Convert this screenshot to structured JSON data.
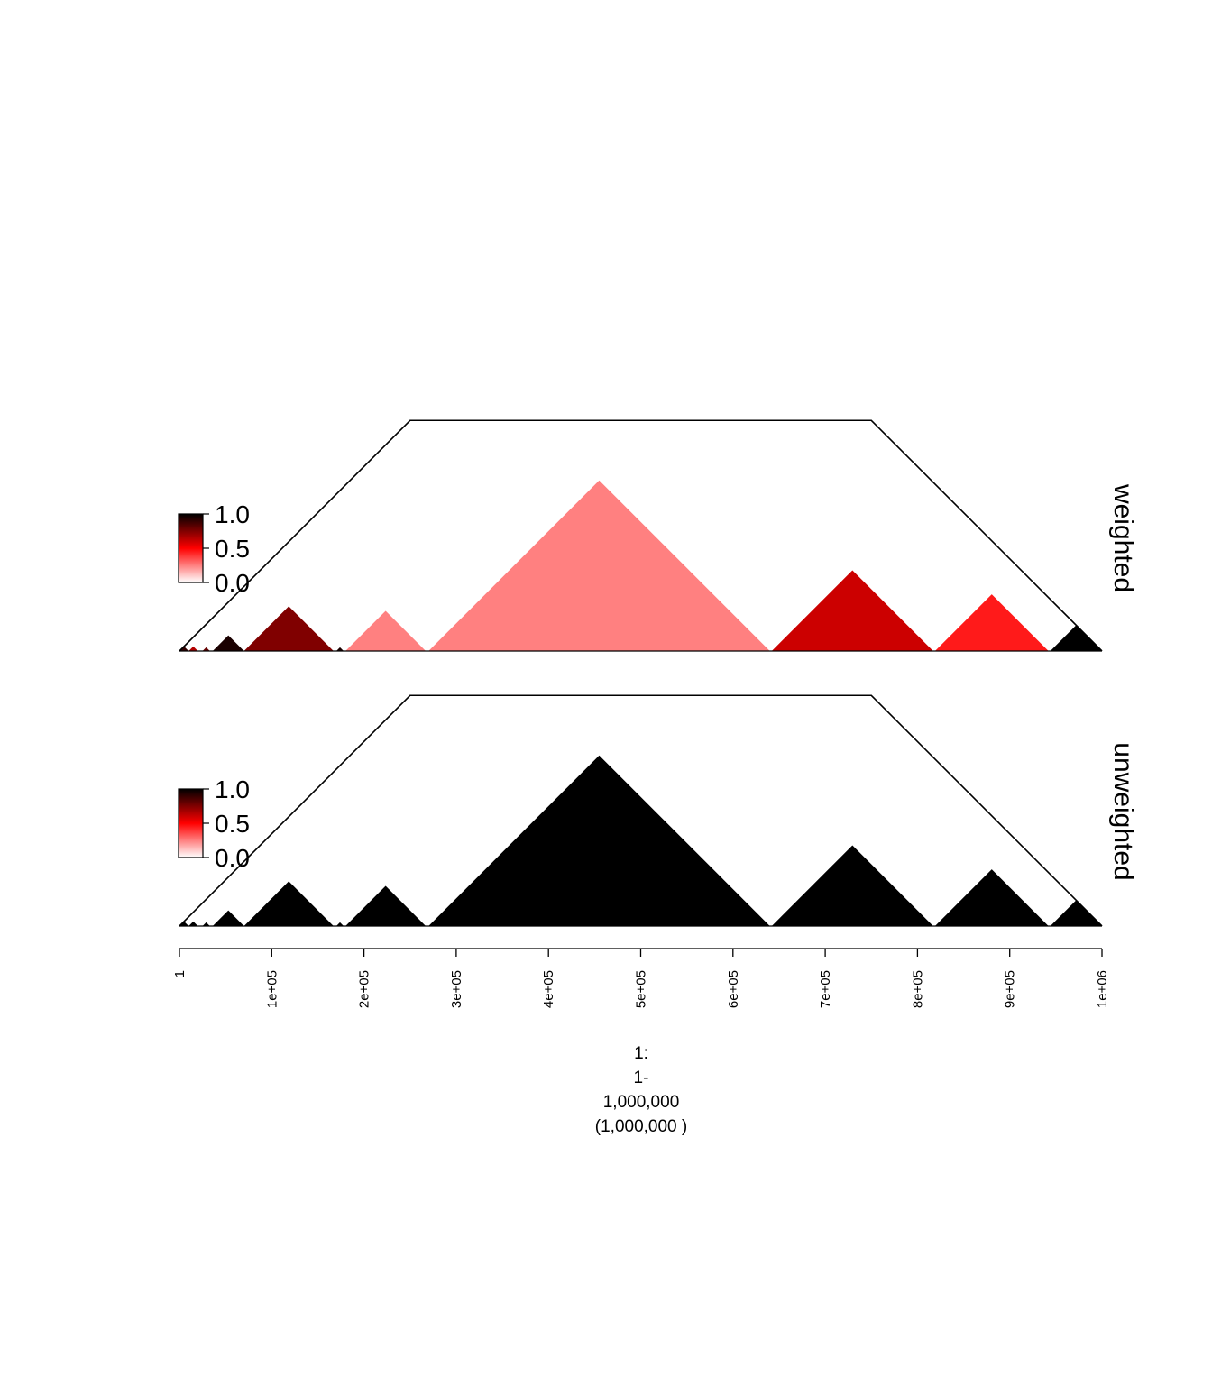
{
  "chart_data": {
    "type": "domain-triangle-plot",
    "x_axis": {
      "range": [
        1,
        1000000
      ],
      "ticks": [
        1,
        100000,
        200000,
        300000,
        400000,
        500000,
        600000,
        700000,
        800000,
        900000,
        1000000
      ],
      "tick_labels": [
        "1",
        "1e+05",
        "2e+05",
        "3e+05",
        "4e+05",
        "5e+05",
        "6e+05",
        "7e+05",
        "8e+05",
        "9e+05",
        "1e+06"
      ],
      "title_lines": [
        "1:",
        "1-",
        "1,000,000",
        "(1,000,000 )"
      ]
    },
    "legend": {
      "placement": "left",
      "labels": [
        "1.0",
        "0.5",
        "0.0"
      ],
      "gradient_colors": [
        "#000000",
        "#ff0000",
        "#ffffff"
      ]
    },
    "outline_domain": {
      "start": 1,
      "end": 1000000,
      "height_cap": 250000
    },
    "panels": [
      {
        "name": "weighted",
        "domains": [
          {
            "start": 1,
            "end": 10000,
            "value": 0.9
          },
          {
            "start": 10000,
            "end": 20000,
            "value": 0.65
          },
          {
            "start": 25000,
            "end": 33000,
            "value": 0.8
          },
          {
            "start": 36000,
            "end": 70000,
            "value": 0.95
          },
          {
            "start": 70000,
            "end": 167000,
            "value": 0.75
          },
          {
            "start": 170000,
            "end": 178000,
            "value": 0.95
          },
          {
            "start": 180000,
            "end": 267000,
            "value": 0.25
          },
          {
            "start": 270000,
            "end": 640000,
            "value": 0.25
          },
          {
            "start": 642000,
            "end": 817000,
            "value": 0.6
          },
          {
            "start": 819000,
            "end": 942000,
            "value": 0.45
          },
          {
            "start": 944000,
            "end": 1000000,
            "value": 1.0
          }
        ]
      },
      {
        "name": "unweighted",
        "domains": [
          {
            "start": 1,
            "end": 10000,
            "value": 1.0
          },
          {
            "start": 10000,
            "end": 20000,
            "value": 1.0
          },
          {
            "start": 25000,
            "end": 33000,
            "value": 1.0
          },
          {
            "start": 36000,
            "end": 70000,
            "value": 1.0
          },
          {
            "start": 70000,
            "end": 167000,
            "value": 1.0
          },
          {
            "start": 170000,
            "end": 178000,
            "value": 1.0
          },
          {
            "start": 180000,
            "end": 267000,
            "value": 1.0
          },
          {
            "start": 270000,
            "end": 640000,
            "value": 1.0
          },
          {
            "start": 642000,
            "end": 817000,
            "value": 1.0
          },
          {
            "start": 819000,
            "end": 942000,
            "value": 1.0
          },
          {
            "start": 944000,
            "end": 1000000,
            "value": 1.0
          }
        ]
      }
    ]
  }
}
